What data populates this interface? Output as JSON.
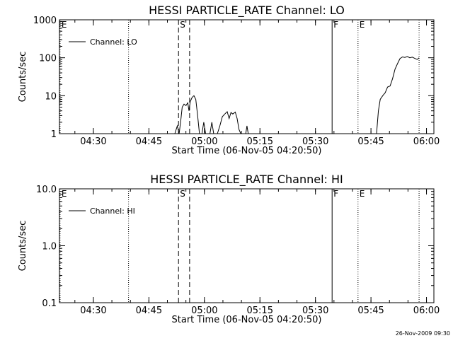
{
  "footer_timestamp": "26-Nov-2009 09:30",
  "chart_data": [
    {
      "type": "line",
      "title": "HESSI PARTICLE_RATE Channel: LO",
      "xlabel": "Start Time (06-Nov-05 04:20:50)",
      "ylabel": "Counts/sec",
      "yscale": "log",
      "xrange": [
        "04:20:50",
        "06:02:00"
      ],
      "ylim": [
        1,
        1000
      ],
      "xticks": [
        "04:30",
        "04:45",
        "05:00",
        "05:15",
        "05:30",
        "05:45",
        "06:00"
      ],
      "yticks": [
        "1",
        "10",
        "100",
        "1000"
      ],
      "legend": {
        "label": "Channel: LO",
        "position": "top-left"
      },
      "markers": [
        {
          "label": "E",
          "time": "04:21:00",
          "style": "dotted"
        },
        {
          "label": "",
          "time": "04:39:30",
          "style": "dotted"
        },
        {
          "label": "S",
          "time": "04:53:00",
          "style": "dashed"
        },
        {
          "label": "",
          "time": "04:56:00",
          "style": "dashed"
        },
        {
          "label": "F",
          "time": "05:34:30",
          "style": "solid"
        },
        {
          "label": "E",
          "time": "05:41:30",
          "style": "dotted"
        },
        {
          "label": "",
          "time": "05:58:00",
          "style": "dotted"
        }
      ],
      "series": [
        {
          "name": "Channel: LO",
          "segments": [
            [
              [
                "04:52:00",
                1
              ],
              [
                "04:52:40",
                1.6
              ],
              [
                "04:53:10",
                1
              ],
              [
                "04:53:40",
                2.5
              ],
              [
                "04:54:00",
                5
              ],
              [
                "04:54:30",
                6
              ],
              [
                "04:55:00",
                5.5
              ],
              [
                "04:55:30",
                6.5
              ],
              [
                "04:55:50",
                4
              ],
              [
                "04:56:10",
                7
              ],
              [
                "04:56:40",
                9
              ],
              [
                "04:57:10",
                10
              ],
              [
                "04:57:40",
                8
              ],
              [
                "04:58:10",
                3
              ],
              [
                "04:58:40",
                1
              ]
            ],
            [
              [
                "04:59:20",
                1
              ],
              [
                "04:59:50",
                2
              ],
              [
                "05:00:20",
                1
              ]
            ],
            [
              [
                "05:01:30",
                1
              ],
              [
                "05:02:00",
                2
              ],
              [
                "05:02:30",
                1
              ]
            ],
            [
              [
                "05:03:30",
                1
              ],
              [
                "05:04:10",
                1.6
              ],
              [
                "05:04:50",
                2.8
              ],
              [
                "05:05:30",
                3.3
              ],
              [
                "05:06:10",
                3.8
              ],
              [
                "05:06:40",
                2.5
              ],
              [
                "05:07:10",
                3.6
              ],
              [
                "05:07:40",
                3.3
              ],
              [
                "05:08:20",
                3.7
              ],
              [
                "05:08:50",
                2.5
              ],
              [
                "05:09:20",
                1.3
              ],
              [
                "05:09:50",
                1
              ]
            ],
            [
              [
                "05:11:10",
                1
              ],
              [
                "05:11:30",
                1.6
              ],
              [
                "05:11:50",
                1
              ]
            ],
            [
              [
                "05:46:30",
                1
              ],
              [
                "05:47:00",
                4
              ],
              [
                "05:47:30",
                8
              ],
              [
                "05:48:10",
                10
              ],
              [
                "05:48:50",
                12
              ],
              [
                "05:49:30",
                17
              ],
              [
                "05:50:10",
                18
              ],
              [
                "05:50:50",
                28
              ],
              [
                "05:51:30",
                50
              ],
              [
                "05:52:10",
                70
              ],
              [
                "05:52:50",
                95
              ],
              [
                "05:53:30",
                105
              ],
              [
                "05:54:10",
                102
              ],
              [
                "05:54:50",
                108
              ],
              [
                "05:55:30",
                100
              ],
              [
                "05:56:10",
                104
              ],
              [
                "05:56:50",
                96
              ],
              [
                "05:57:30",
                90
              ],
              [
                "05:58:00",
                100
              ]
            ]
          ]
        }
      ]
    },
    {
      "type": "line",
      "title": "HESSI PARTICLE_RATE Channel: HI",
      "xlabel": "Start Time (06-Nov-05 04:20:50)",
      "ylabel": "Counts/sec",
      "yscale": "log",
      "xrange": [
        "04:20:50",
        "06:02:00"
      ],
      "ylim": [
        0.1,
        10
      ],
      "xticks": [
        "04:30",
        "04:45",
        "05:00",
        "05:15",
        "05:30",
        "05:45",
        "06:00"
      ],
      "yticks": [
        "0.1",
        "1.0",
        "10.0"
      ],
      "legend": {
        "label": "Channel: HI",
        "position": "top-left"
      },
      "markers": [
        {
          "label": "E",
          "time": "04:21:00",
          "style": "dotted"
        },
        {
          "label": "",
          "time": "04:39:30",
          "style": "dotted"
        },
        {
          "label": "S",
          "time": "04:53:00",
          "style": "dashed"
        },
        {
          "label": "",
          "time": "04:56:00",
          "style": "dashed"
        },
        {
          "label": "F",
          "time": "05:34:30",
          "style": "solid"
        },
        {
          "label": "E",
          "time": "05:41:30",
          "style": "dotted"
        },
        {
          "label": "",
          "time": "05:58:00",
          "style": "dotted"
        }
      ],
      "series": [
        {
          "name": "Channel: HI",
          "segments": []
        }
      ]
    }
  ]
}
